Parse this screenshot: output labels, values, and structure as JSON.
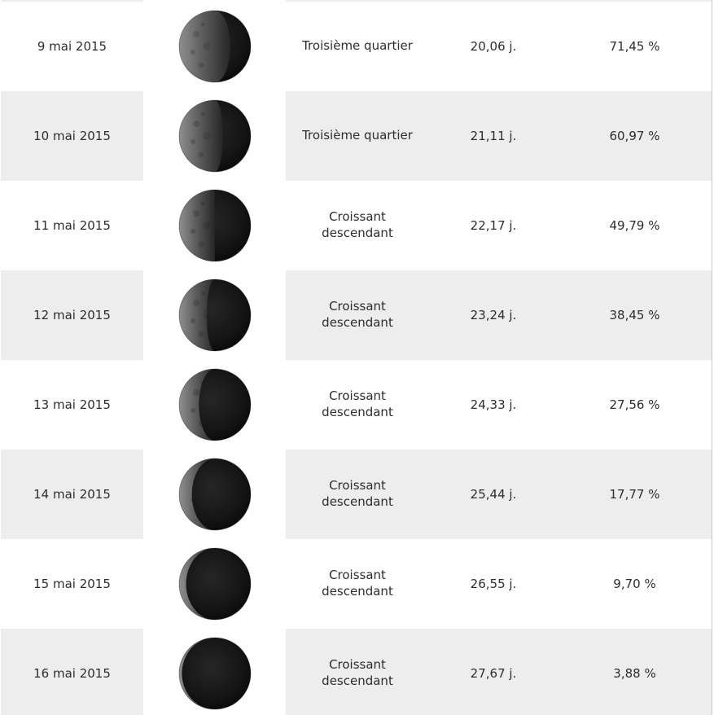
{
  "colors": {
    "row_background": "#ffffff",
    "row_alt_background": "#ededed",
    "moon_cell_background": "#ffffff",
    "text": "#2d2d2d",
    "right_border": "#cbcbcb",
    "moon_dark": "#141414",
    "moon_lit": "#909090"
  },
  "moon": {
    "lit_side": "left",
    "phase_trend": "waning"
  },
  "rows": [
    {
      "date": "9 mai 2015",
      "phase": "Troisième quartier",
      "age": "20,06 j.",
      "illumination": "71,45 %",
      "illumination_percent": 71.45
    },
    {
      "date": "10 mai 2015",
      "phase": "Troisième quartier",
      "age": "21,11 j.",
      "illumination": "60,97 %",
      "illumination_percent": 60.97
    },
    {
      "date": "11 mai 2015",
      "phase": "Croissant descendant",
      "age": "22,17 j.",
      "illumination": "49,79 %",
      "illumination_percent": 49.79
    },
    {
      "date": "12 mai 2015",
      "phase": "Croissant descendant",
      "age": "23,24 j.",
      "illumination": "38,45 %",
      "illumination_percent": 38.45
    },
    {
      "date": "13 mai 2015",
      "phase": "Croissant descendant",
      "age": "24,33 j.",
      "illumination": "27,56 %",
      "illumination_percent": 27.56
    },
    {
      "date": "14 mai 2015",
      "phase": "Croissant descendant",
      "age": "25,44 j.",
      "illumination": "17,77 %",
      "illumination_percent": 17.77
    },
    {
      "date": "15 mai 2015",
      "phase": "Croissant descendant",
      "age": "26,55 j.",
      "illumination": "9,70 %",
      "illumination_percent": 9.7
    },
    {
      "date": "16 mai 2015",
      "phase": "Croissant descendant",
      "age": "27,67 j.",
      "illumination": "3,88 %",
      "illumination_percent": 3.88
    }
  ]
}
